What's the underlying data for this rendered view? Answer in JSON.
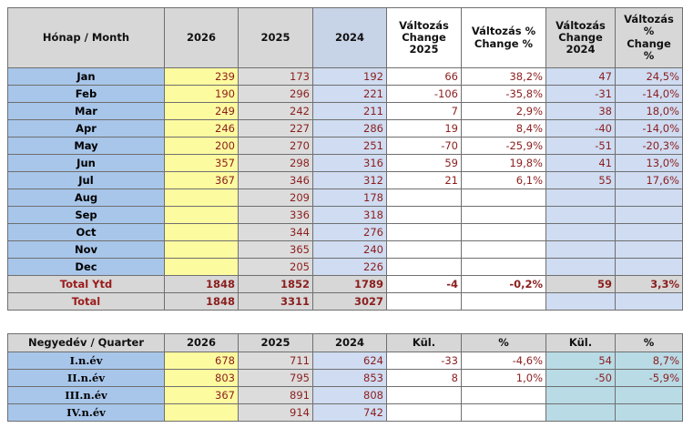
{
  "monthly": {
    "headers": {
      "month": "Hónap / Month",
      "y2026": "2026",
      "y2025": "2025",
      "y2024": "2024",
      "ch25": [
        "Változás",
        "Change",
        "2025"
      ],
      "chp25": [
        "Változás %",
        "Change %"
      ],
      "ch24": [
        "Változás",
        "Change",
        "2024"
      ],
      "chp24": [
        "Változás",
        "%",
        "Change",
        "%"
      ]
    },
    "rows": [
      {
        "m": "Jan",
        "a": "239",
        "b": "173",
        "c": "192",
        "d": "66",
        "e": "38,2%",
        "f": "47",
        "g": "24,5%"
      },
      {
        "m": "Feb",
        "a": "190",
        "b": "296",
        "c": "221",
        "d": "-106",
        "e": "-35,8%",
        "f": "-31",
        "g": "-14,0%"
      },
      {
        "m": "Mar",
        "a": "249",
        "b": "242",
        "c": "211",
        "d": "7",
        "e": "2,9%",
        "f": "38",
        "g": "18,0%"
      },
      {
        "m": "Apr",
        "a": "246",
        "b": "227",
        "c": "286",
        "d": "19",
        "e": "8,4%",
        "f": "-40",
        "g": "-14,0%"
      },
      {
        "m": "May",
        "a": "200",
        "b": "270",
        "c": "251",
        "d": "-70",
        "e": "-25,9%",
        "f": "-51",
        "g": "-20,3%"
      },
      {
        "m": "Jun",
        "a": "357",
        "b": "298",
        "c": "316",
        "d": "59",
        "e": "19,8%",
        "f": "41",
        "g": "13,0%"
      },
      {
        "m": "Jul",
        "a": "367",
        "b": "346",
        "c": "312",
        "d": "21",
        "e": "6,1%",
        "f": "55",
        "g": "17,6%"
      },
      {
        "m": "Aug",
        "a": "",
        "b": "209",
        "c": "178",
        "d": "",
        "e": "",
        "f": "",
        "g": ""
      },
      {
        "m": "Sep",
        "a": "",
        "b": "336",
        "c": "318",
        "d": "",
        "e": "",
        "f": "",
        "g": ""
      },
      {
        "m": "Oct",
        "a": "",
        "b": "344",
        "c": "276",
        "d": "",
        "e": "",
        "f": "",
        "g": ""
      },
      {
        "m": "Nov",
        "a": "",
        "b": "365",
        "c": "240",
        "d": "",
        "e": "",
        "f": "",
        "g": ""
      },
      {
        "m": "Dec",
        "a": "",
        "b": "205",
        "c": "226",
        "d": "",
        "e": "",
        "f": "",
        "g": ""
      }
    ],
    "total_ytd": {
      "label": "Total Ytd",
      "a": "1848",
      "b": "1852",
      "c": "1789",
      "d": "-4",
      "e": "-0,2%",
      "f": "59",
      "g": "3,3%"
    },
    "total": {
      "label": "Total",
      "a": "1848",
      "b": "3311",
      "c": "3027"
    }
  },
  "quarterly": {
    "headers": {
      "quarter": "Negyedév / Quarter",
      "y2026": "2026",
      "y2025": "2025",
      "y2024": "2024",
      "kul1": "Kül.",
      "pct1": "%",
      "kul2": "Kül.",
      "pct2": "%"
    },
    "rows": [
      {
        "q": "I.n.év",
        "a": "678",
        "b": "711",
        "c": "624",
        "d": "-33",
        "e": "-4,6%",
        "f": "54",
        "g": "8,7%"
      },
      {
        "q": "II.n.év",
        "a": "803",
        "b": "795",
        "c": "853",
        "d": "8",
        "e": "1,0%",
        "f": "-50",
        "g": "-5,9%"
      },
      {
        "q": "III.n.év",
        "a": "367",
        "b": "891",
        "c": "808",
        "d": "",
        "e": "",
        "f": "",
        "g": ""
      },
      {
        "q": "IV.n.év",
        "a": "",
        "b": "914",
        "c": "742",
        "d": "",
        "e": "",
        "f": "",
        "g": ""
      }
    ]
  }
}
